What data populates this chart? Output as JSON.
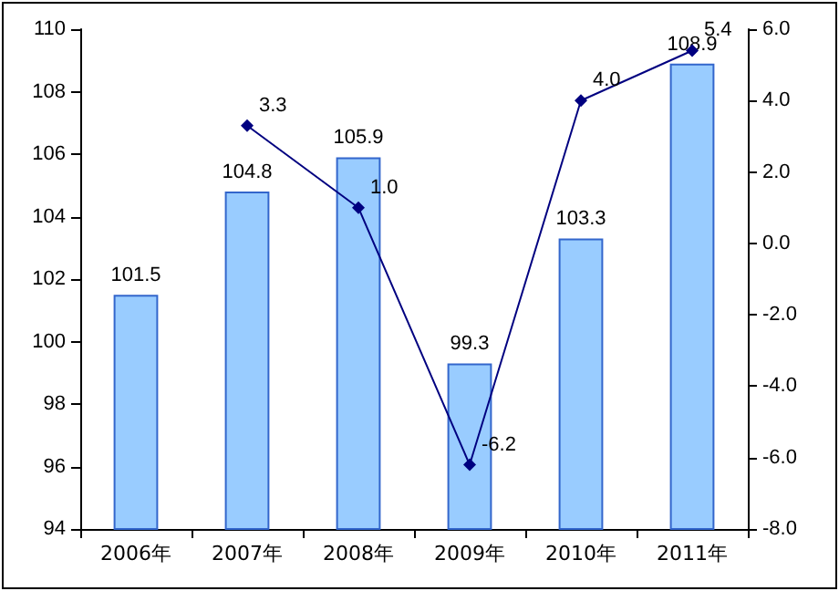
{
  "chart_data": {
    "type": "bar",
    "categories": [
      "2006年",
      "2007年",
      "2008年",
      "2009年",
      "2010年",
      "2011年"
    ],
    "series": [
      {
        "type": "bar",
        "color": "#99ccff",
        "values": [
          101.5,
          104.8,
          105.9,
          99.3,
          103.3,
          108.9
        ]
      },
      {
        "type": "line",
        "axis": "y2",
        "color": "#000080",
        "marker": "diamond",
        "values": [
          null,
          3.3,
          1.0,
          -6.2,
          4.0,
          5.4
        ],
        "value_labels": [
          null,
          "3.3",
          "1.0",
          "-6.2",
          "4.0",
          "5.4"
        ]
      }
    ],
    "ylim": [
      94,
      110
    ],
    "yticks": [
      94,
      96,
      98,
      100,
      102,
      104,
      106,
      108,
      110
    ],
    "y2lim": [
      -8,
      6
    ],
    "y2ticks": [
      {
        "value": -8,
        "label": "-8.0"
      },
      {
        "value": -6,
        "label": "-6.0"
      },
      {
        "value": -4,
        "label": "-4.0"
      },
      {
        "value": -2,
        "label": "-2.0"
      },
      {
        "value": 0,
        "label": "0.0"
      },
      {
        "value": 2,
        "label": "2.0"
      },
      {
        "value": 4,
        "label": "4.0"
      },
      {
        "value": 6,
        "label": "6.0"
      }
    ],
    "data_labels": true,
    "grid": false,
    "legend": false
  }
}
